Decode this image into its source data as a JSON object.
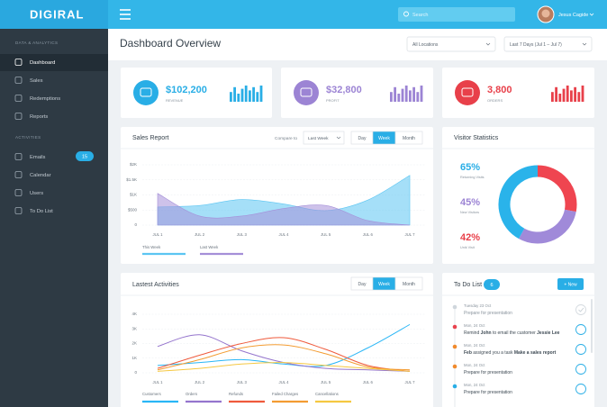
{
  "topbar": {
    "logo": "DIGIRAL",
    "search": "Search",
    "user": "Jesus Cagide"
  },
  "sidebar": {
    "sections": [
      {
        "title": "DATA & ANALYTICS",
        "items": [
          "Dashboard",
          "Sales",
          "Redemptions",
          "Reports"
        ]
      },
      {
        "title": "ACTIVITIES",
        "items": [
          "Emails",
          "Calendar",
          "Users",
          "To Do List"
        ]
      }
    ],
    "emails_badge": 15
  },
  "header": {
    "title": "Dashboard Overview",
    "filters": [
      "All Locations",
      "Last 7 Days (Jul 1 – Jul 7)"
    ]
  },
  "stats": [
    {
      "value": "$102,200",
      "label": "REVENUE",
      "color": "#29aee6"
    },
    {
      "value": "$32,800",
      "label": "PROFIT",
      "color": "#9c84d4"
    },
    {
      "value": "3,800",
      "label": "ORDERS",
      "color": "#e8404a"
    }
  ],
  "chart_data": [
    {
      "type": "area",
      "title": "Sales Report",
      "compare_label": "Compare to",
      "compare_value": "Last Week",
      "tabs": [
        "Day",
        "Week",
        "Month"
      ],
      "categories": [
        "JUL 1",
        "JUL 2",
        "JUL 3",
        "JUL 4",
        "JUL 5",
        "JUL 6",
        "JUL 7"
      ],
      "series": [
        {
          "name": "This Week",
          "color": "#5bc5f2",
          "values": [
            600,
            650,
            850,
            700,
            480,
            830,
            1650
          ]
        },
        {
          "name": "Last Week",
          "color": "#a58fd8",
          "values": [
            1050,
            300,
            300,
            550,
            650,
            150,
            0
          ]
        }
      ],
      "ylim": [
        0,
        2000
      ],
      "yticks": [
        0,
        {
          "value": 500,
          "label": "$500"
        },
        {
          "value": 1000,
          "label": "$1K"
        },
        {
          "value": 1500,
          "label": "$1.5K"
        },
        {
          "value": 2000,
          "label": "$2K"
        }
      ],
      "grid": true
    },
    {
      "type": "donut",
      "title": "Visitor Statistics",
      "values": [
        65,
        45,
        42
      ],
      "value_labels": [
        "65%",
        "45%",
        "42%"
      ],
      "labels": [
        "Returning Visits",
        "New Visitors",
        "Unik Visit"
      ],
      "colors": [
        "#29aee6",
        "#9c84d4",
        "#e8404a"
      ],
      "segments": {
        "values": [
          28,
          30,
          42
        ],
        "colors": [
          "#ef4550",
          "#a08ad9",
          "#2ab3ea"
        ]
      }
    },
    {
      "type": "line",
      "title": "Lastest Activities",
      "tabs": [
        "Day",
        "Week",
        "Month"
      ],
      "categories": [
        "JUL 1",
        "JUL 2",
        "JUL 3",
        "JUL 4",
        "JUL 5",
        "JUL 6",
        "JUL 7"
      ],
      "series": [
        {
          "name": "Customers",
          "color": "#29b6f6",
          "values": [
            500,
            700,
            900,
            600,
            500,
            1700,
            3300
          ]
        },
        {
          "name": "Orders",
          "color": "#9575cd",
          "values": [
            1800,
            2600,
            1500,
            700,
            300,
            200,
            100
          ]
        },
        {
          "name": "Refunds",
          "color": "#ef5a3c",
          "values": [
            300,
            1200,
            2000,
            2400,
            1600,
            500,
            100
          ]
        },
        {
          "name": "Failed Charges",
          "color": "#f39c32",
          "values": [
            200,
            900,
            1700,
            1900,
            1300,
            400,
            200
          ]
        },
        {
          "name": "Cancellations",
          "color": "#f5c842",
          "values": [
            100,
            300,
            600,
            700,
            500,
            300,
            100
          ]
        }
      ],
      "ylim": [
        0,
        4000
      ],
      "yticks": [
        0,
        {
          "value": 1000,
          "label": "1K"
        },
        {
          "value": 2000,
          "label": "2K"
        },
        {
          "value": 3000,
          "label": "3K"
        },
        {
          "value": 4000,
          "label": "4K"
        }
      ],
      "grid": true
    }
  ],
  "todo": {
    "title": "To Do List",
    "count": 6,
    "button": "+ New",
    "items": [
      {
        "date": "Tuesday 23 Oct",
        "parts": [
          "Prepare for presentation"
        ],
        "color": "#cfd6dc"
      },
      {
        "date": "Mon, 24 Oct",
        "parts": [
          "Remind ",
          "John",
          " to email the customer ",
          "Jessie Lee"
        ],
        "color": "#e8434e"
      },
      {
        "date": "Mon, 24 Oct",
        "parts": [
          "Feb",
          " assigned you a task ",
          "Make a sales report"
        ],
        "color": "#f08a2c"
      },
      {
        "date": "Mon, 24 Oct",
        "parts": [
          "Prepare for presentation"
        ],
        "color": "#f08a2c"
      },
      {
        "date": "Mon, 24 Oct",
        "parts": [
          "Prepare for presentation"
        ],
        "color": "#29aee6"
      }
    ]
  }
}
